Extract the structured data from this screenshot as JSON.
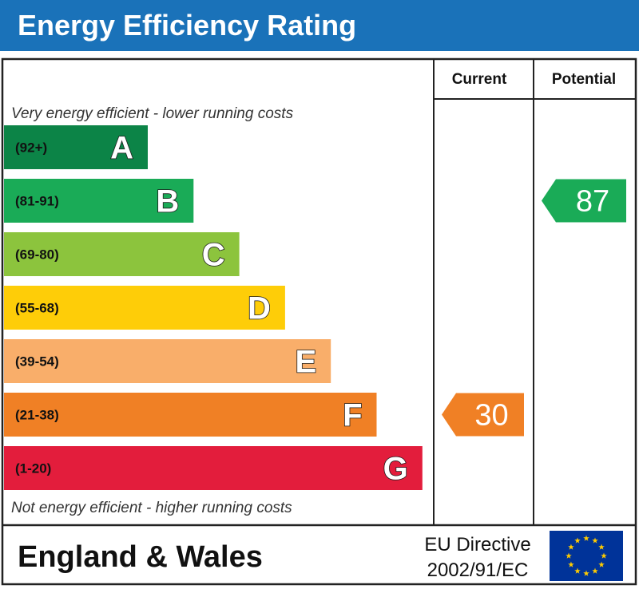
{
  "title": "Energy Efficiency Rating",
  "columns": {
    "current": "Current",
    "potential": "Potential"
  },
  "notes": {
    "top": "Very energy efficient - lower running costs",
    "bottom": "Not energy efficient - higher running costs"
  },
  "footer": {
    "region": "England & Wales",
    "directive_line1": "EU Directive",
    "directive_line2": "2002/91/EC",
    "flag_icon": "eu-flag-icon"
  },
  "chart_data": {
    "type": "bar",
    "categories": [
      "A",
      "B",
      "C",
      "D",
      "E",
      "F",
      "G"
    ],
    "ranges": [
      "(92+)",
      "(81-91)",
      "(69-80)",
      "(55-68)",
      "(39-54)",
      "(21-38)",
      "(1-20)"
    ],
    "band_min": [
      92,
      81,
      69,
      55,
      39,
      21,
      1
    ],
    "band_max": [
      100,
      91,
      80,
      68,
      54,
      38,
      20
    ],
    "colors": [
      "#0c8447",
      "#1aab57",
      "#8cc43d",
      "#fecd08",
      "#f9ae6a",
      "#f08025",
      "#e31d3c"
    ],
    "current": {
      "value": 30,
      "band": "F",
      "color": "#f08025"
    },
    "potential": {
      "value": 87,
      "band": "B",
      "color": "#1aab57"
    }
  }
}
